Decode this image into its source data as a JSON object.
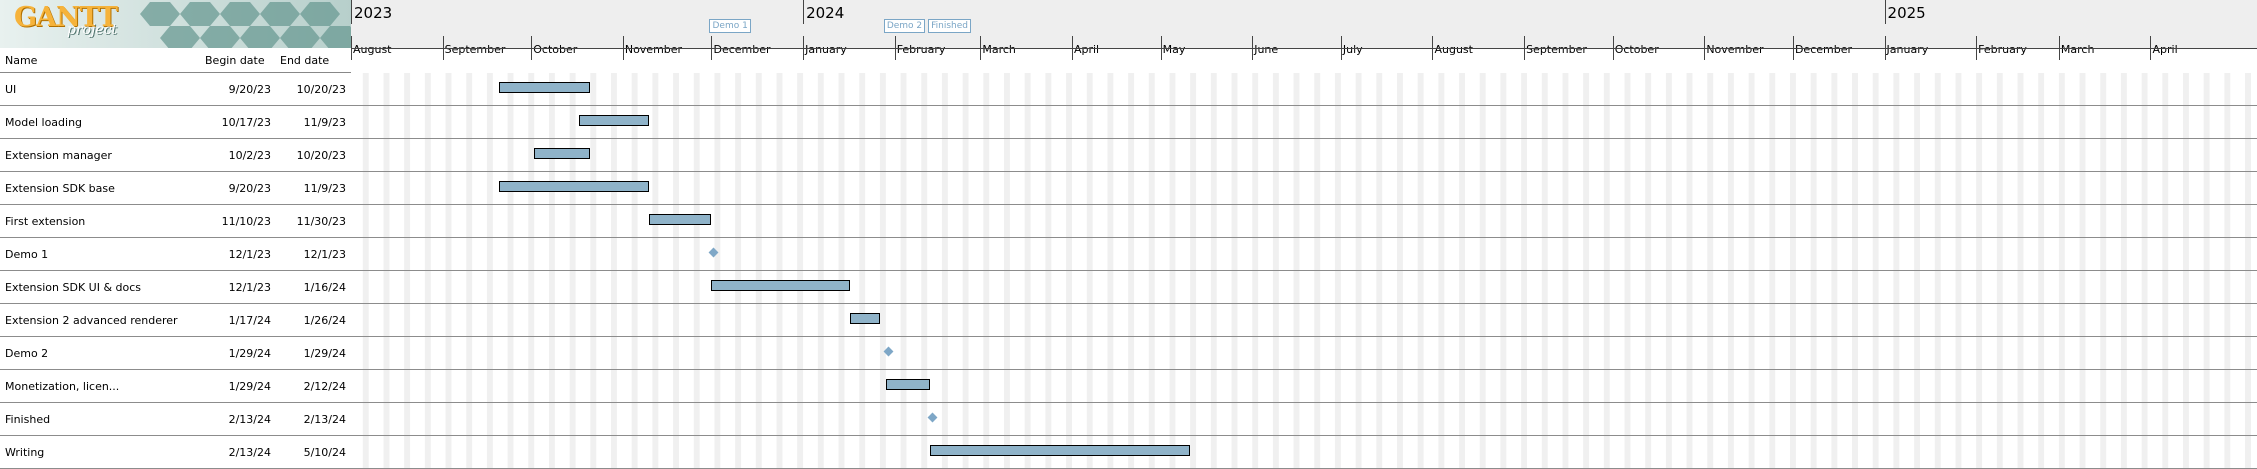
{
  "logo": {
    "title": "GANTT",
    "subtitle": "project"
  },
  "columns": {
    "name": "Name",
    "begin": "Begin date",
    "end": "End date"
  },
  "timeline": {
    "years": [
      {
        "label": "2023",
        "month_index": 0
      },
      {
        "label": "2024",
        "month_index": 5
      },
      {
        "label": "2025",
        "month_index": 17
      }
    ],
    "months": [
      "August",
      "September",
      "October",
      "November",
      "December",
      "January",
      "February",
      "March",
      "April",
      "May",
      "June",
      "July",
      "August",
      "September",
      "October",
      "November",
      "December",
      "January",
      "February",
      "March",
      "April"
    ],
    "flags": [
      {
        "label": "Demo 1",
        "date": "2023-12-01"
      },
      {
        "label": "Demo 2",
        "date": "2024-01-29"
      },
      {
        "label": "Finished",
        "date": "2024-02-13"
      }
    ]
  },
  "tasks": [
    {
      "name": "UI",
      "begin": "9/20/23",
      "end": "10/20/23",
      "start_date": "2023-09-20",
      "end_date": "2023-10-20",
      "milestone": false
    },
    {
      "name": "Model loading",
      "begin": "10/17/23",
      "end": "11/9/23",
      "start_date": "2023-10-17",
      "end_date": "2023-11-09",
      "milestone": false
    },
    {
      "name": "Extension manager",
      "begin": "10/2/23",
      "end": "10/20/23",
      "start_date": "2023-10-02",
      "end_date": "2023-10-20",
      "milestone": false
    },
    {
      "name": "Extension SDK base",
      "begin": "9/20/23",
      "end": "11/9/23",
      "start_date": "2023-09-20",
      "end_date": "2023-11-09",
      "milestone": false
    },
    {
      "name": "First extension",
      "begin": "11/10/23",
      "end": "11/30/23",
      "start_date": "2023-11-10",
      "end_date": "2023-11-30",
      "milestone": false
    },
    {
      "name": "Demo 1",
      "begin": "12/1/23",
      "end": "12/1/23",
      "start_date": "2023-12-01",
      "end_date": "2023-12-01",
      "milestone": true
    },
    {
      "name": "Extension SDK UI & docs",
      "begin": "12/1/23",
      "end": "1/16/24",
      "start_date": "2023-12-01",
      "end_date": "2024-01-16",
      "milestone": false
    },
    {
      "name": "Extension 2 advanced renderer",
      "begin": "1/17/24",
      "end": "1/26/24",
      "start_date": "2024-01-17",
      "end_date": "2024-01-26",
      "milestone": false
    },
    {
      "name": "Demo 2",
      "begin": "1/29/24",
      "end": "1/29/24",
      "start_date": "2024-01-29",
      "end_date": "2024-01-29",
      "milestone": true
    },
    {
      "name": "Monetization, licen...",
      "begin": "1/29/24",
      "end": "2/12/24",
      "start_date": "2024-01-29",
      "end_date": "2024-02-12",
      "milestone": false
    },
    {
      "name": "Finished",
      "begin": "2/13/24",
      "end": "2/13/24",
      "start_date": "2024-02-13",
      "end_date": "2024-02-13",
      "milestone": true
    },
    {
      "name": "Writing",
      "begin": "2/13/24",
      "end": "5/10/24",
      "start_date": "2024-02-13",
      "end_date": "2024-05-10",
      "milestone": false
    }
  ],
  "colors": {
    "bar": "#8fb3c9",
    "milestone": "#7ea7c7",
    "header_bg": "#eeeeee",
    "weekend": "#f0f0f0"
  }
}
